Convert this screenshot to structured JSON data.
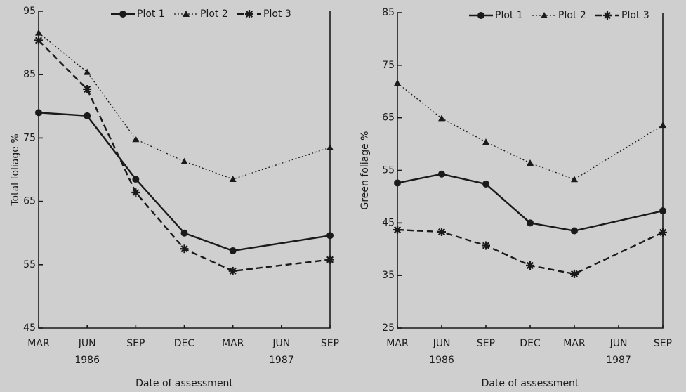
{
  "chart_data": [
    {
      "type": "line",
      "xlabel": "Date of assessment",
      "ylabel": "Total foliage %",
      "categories": [
        "MAR",
        "JUN",
        "SEP",
        "DEC",
        "MAR",
        "JUN",
        "SEP"
      ],
      "year_labels": [
        "1986",
        "1987"
      ],
      "ylim": [
        45,
        95
      ],
      "yticks": [
        45,
        55,
        65,
        75,
        85,
        95
      ],
      "series": [
        {
          "name": "Plot 1",
          "color": "#1a1a1a",
          "marker": "circle",
          "dash": "solid",
          "values": [
            79,
            78.5,
            68.5,
            60,
            57.2,
            null,
            59.6
          ]
        },
        {
          "name": "Plot 2",
          "color": "#1a1a1a",
          "marker": "triangle",
          "dash": "dotted",
          "values": [
            91.6,
            85.4,
            74.8,
            71.3,
            68.5,
            null,
            73.5
          ]
        },
        {
          "name": "Plot 3",
          "color": "#1a1a1a",
          "marker": "star",
          "dash": "dashed",
          "values": [
            90.4,
            82.7,
            66.4,
            57.5,
            54,
            null,
            55.8
          ]
        }
      ]
    },
    {
      "type": "line",
      "xlabel": "Date of assessment",
      "ylabel": "Green foliage %",
      "categories": [
        "MAR",
        "JUN",
        "SEP",
        "DEC",
        "MAR",
        "JUN",
        "SEP"
      ],
      "year_labels": [
        "1986",
        "1987"
      ],
      "ylim": [
        25,
        85
      ],
      "yticks": [
        25,
        35,
        45,
        55,
        65,
        75,
        85
      ],
      "series": [
        {
          "name": "Plot 1",
          "color": "#1a1a1a",
          "marker": "circle",
          "dash": "solid",
          "values": [
            52.6,
            54.3,
            52.4,
            45,
            43.5,
            null,
            47.3
          ]
        },
        {
          "name": "Plot 2",
          "color": "#1a1a1a",
          "marker": "triangle",
          "dash": "dotted",
          "values": [
            71.6,
            64.9,
            60.4,
            56.4,
            53.3,
            null,
            63.6
          ]
        },
        {
          "name": "Plot 3",
          "color": "#1a1a1a",
          "marker": "star",
          "dash": "dashed",
          "values": [
            43.7,
            43.3,
            40.7,
            36.9,
            35.3,
            null,
            43.2
          ]
        }
      ]
    }
  ]
}
